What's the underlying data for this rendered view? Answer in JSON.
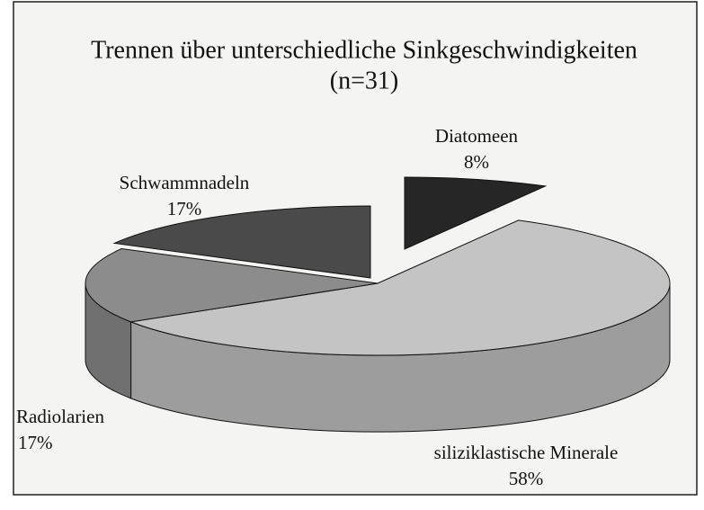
{
  "chart_data": {
    "type": "pie",
    "title": "Trennen über unterschiedliche Sinkgeschwindigkeiten",
    "subtitle": "(n=31)",
    "categories": [
      "Diatomeen",
      "siliziklastische Minerale",
      "Radiolarien",
      "Schwammnadeln"
    ],
    "values": [
      8,
      58,
      17,
      17
    ],
    "value_labels": [
      "8%",
      "58%",
      "17%",
      "17%"
    ],
    "colors": [
      "#262626",
      "#c4c4c4",
      "#8c8c8c",
      "#4a4a4a"
    ]
  }
}
